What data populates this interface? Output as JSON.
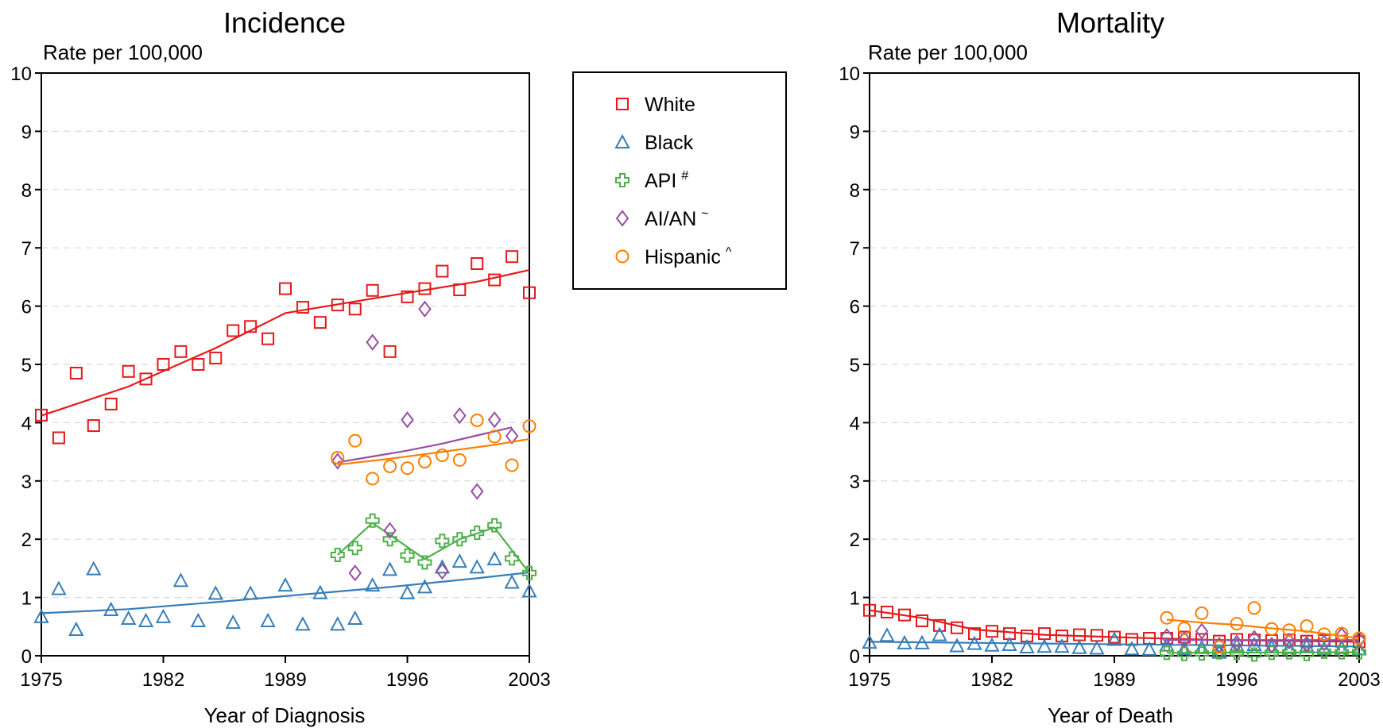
{
  "colors": {
    "White": "#e41a1c",
    "Black": "#377eb8",
    "API": "#4daf4a",
    "AIAN": "#984ea3",
    "Hispanic": "#ff7f00",
    "grid": "#d9d9d9",
    "axis": "#000000"
  },
  "legend": {
    "items": [
      {
        "key": "White",
        "label": "White",
        "sup": "",
        "marker": "square-icon"
      },
      {
        "key": "Black",
        "label": "Black",
        "sup": "",
        "marker": "triangle-icon"
      },
      {
        "key": "API",
        "label": "API",
        "sup": "#",
        "marker": "cross-icon"
      },
      {
        "key": "AIAN",
        "label": "AI/AN",
        "sup": "~",
        "marker": "diamond-icon"
      },
      {
        "key": "Hispanic",
        "label": "Hispanic",
        "sup": "^",
        "marker": "circle-icon"
      }
    ]
  },
  "chart_data": [
    {
      "type": "scatter",
      "title": "Incidence",
      "ylabel": "Rate per 100,000",
      "xlabel": "Year of Diagnosis",
      "xlim": [
        1975,
        2003
      ],
      "ylim": [
        0,
        10
      ],
      "xticks": [
        "1975",
        "1982",
        "1989",
        "1996",
        "2003"
      ],
      "yticks": [
        "0",
        "1",
        "2",
        "3",
        "4",
        "5",
        "6",
        "7",
        "8",
        "9",
        "10"
      ],
      "grid": "horizontal dashed",
      "legend": "right of chart",
      "series": [
        {
          "key": "White",
          "name": "White",
          "x": [
            1975,
            1976,
            1977,
            1978,
            1979,
            1980,
            1981,
            1982,
            1983,
            1984,
            1985,
            1986,
            1987,
            1988,
            1989,
            1990,
            1991,
            1992,
            1993,
            1994,
            1995,
            1996,
            1997,
            1998,
            1999,
            2000,
            2001,
            2002,
            2003
          ],
          "y": [
            4.13,
            3.74,
            4.85,
            3.95,
            4.32,
            4.88,
            4.75,
            5.0,
            5.22,
            5.0,
            5.11,
            5.58,
            5.65,
            5.44,
            6.3,
            5.98,
            5.72,
            6.02,
            5.95,
            6.27,
            5.22,
            6.16,
            6.3,
            6.6,
            6.28,
            6.73,
            6.45,
            6.85,
            6.23
          ],
          "fit_x": [
            1975,
            1980,
            1985,
            1989,
            1990,
            1995,
            2000,
            2003
          ],
          "fit_y": [
            4.12,
            4.62,
            5.28,
            5.88,
            5.93,
            6.18,
            6.42,
            6.62
          ]
        },
        {
          "key": "Black",
          "name": "Black",
          "x": [
            1975,
            1976,
            1977,
            1978,
            1979,
            1980,
            1981,
            1982,
            1983,
            1984,
            1985,
            1986,
            1987,
            1988,
            1989,
            1990,
            1991,
            1992,
            1993,
            1994,
            1995,
            1996,
            1997,
            1998,
            1999,
            2000,
            2001,
            2002,
            2003
          ],
          "y": [
            0.67,
            1.15,
            0.45,
            1.49,
            0.79,
            0.64,
            0.6,
            0.67,
            1.29,
            0.6,
            1.07,
            0.57,
            1.07,
            0.6,
            1.21,
            0.54,
            1.08,
            0.54,
            0.64,
            1.21,
            1.48,
            1.08,
            1.18,
            1.52,
            1.62,
            1.52,
            1.66,
            1.26,
            1.11
          ],
          "fit_x": [
            1975,
            1980,
            1985,
            1990,
            1995,
            2000,
            2003
          ],
          "fit_y": [
            0.73,
            0.8,
            0.92,
            1.05,
            1.18,
            1.33,
            1.43
          ]
        },
        {
          "key": "API",
          "name": "API",
          "x": [
            1992,
            1993,
            1994,
            1995,
            1996,
            1997,
            1998,
            1999,
            2000,
            2001,
            2002,
            2003
          ],
          "y": [
            1.73,
            1.85,
            2.32,
            2.0,
            1.72,
            1.6,
            1.97,
            2.0,
            2.11,
            2.24,
            1.67,
            1.42
          ],
          "fit_x": [
            1992,
            1994,
            1997,
            1999,
            2001,
            2003
          ],
          "fit_y": [
            1.73,
            2.28,
            1.66,
            2.0,
            2.2,
            1.42
          ]
        },
        {
          "key": "AIAN",
          "name": "AI/AN",
          "x": [
            1992,
            1993,
            1994,
            1995,
            1996,
            1997,
            1998,
            1999,
            2000,
            2001,
            2002
          ],
          "y": [
            3.34,
            1.42,
            5.38,
            2.15,
            4.05,
            5.95,
            1.45,
            4.12,
            2.82,
            4.05,
            3.77
          ],
          "fit_x": [
            1992,
            1994,
            1996,
            1998,
            2000,
            2002
          ],
          "fit_y": [
            3.32,
            3.42,
            3.52,
            3.64,
            3.78,
            3.92
          ]
        },
        {
          "key": "Hispanic",
          "name": "Hispanic",
          "x": [
            1992,
            1993,
            1994,
            1995,
            1996,
            1997,
            1998,
            1999,
            2000,
            2001,
            2002,
            2003
          ],
          "y": [
            3.4,
            3.69,
            3.04,
            3.25,
            3.22,
            3.33,
            3.44,
            3.36,
            4.04,
            3.76,
            3.27,
            3.94
          ],
          "fit_x": [
            1992,
            1995,
            1998,
            2001,
            2003
          ],
          "fit_y": [
            3.28,
            3.38,
            3.5,
            3.62,
            3.72
          ]
        }
      ]
    },
    {
      "type": "scatter",
      "title": "Mortality",
      "ylabel": "Rate per 100,000",
      "xlabel": "Year of Death",
      "xlim": [
        1975,
        2003
      ],
      "ylim": [
        0,
        10
      ],
      "xticks": [
        "1975",
        "1982",
        "1989",
        "1996",
        "2003"
      ],
      "yticks": [
        "0",
        "1",
        "2",
        "3",
        "4",
        "5",
        "6",
        "7",
        "8",
        "9",
        "10"
      ],
      "grid": "horizontal dashed",
      "series": [
        {
          "key": "White",
          "name": "White",
          "x": [
            1975,
            1976,
            1977,
            1978,
            1979,
            1980,
            1981,
            1982,
            1983,
            1984,
            1985,
            1986,
            1987,
            1988,
            1989,
            1990,
            1991,
            1992,
            1993,
            1994,
            1995,
            1996,
            1997,
            1998,
            1999,
            2000,
            2001,
            2002,
            2003
          ],
          "y": [
            0.78,
            0.75,
            0.7,
            0.6,
            0.52,
            0.48,
            0.38,
            0.42,
            0.38,
            0.34,
            0.38,
            0.34,
            0.36,
            0.35,
            0.32,
            0.28,
            0.3,
            0.3,
            0.32,
            0.28,
            0.25,
            0.28,
            0.27,
            0.26,
            0.27,
            0.25,
            0.26,
            0.25,
            0.24
          ],
          "fit_x": [
            1975,
            1978,
            1981,
            1985,
            1990,
            1995,
            2000,
            2003
          ],
          "fit_y": [
            0.78,
            0.65,
            0.45,
            0.36,
            0.31,
            0.27,
            0.25,
            0.24
          ]
        },
        {
          "key": "Black",
          "name": "Black",
          "x": [
            1975,
            1976,
            1977,
            1978,
            1979,
            1980,
            1981,
            1982,
            1983,
            1984,
            1985,
            1986,
            1987,
            1988,
            1989,
            1990,
            1991,
            1992,
            1993,
            1994,
            1995,
            1996,
            1997,
            1998,
            1999,
            2000,
            2001,
            2002,
            2003
          ],
          "y": [
            0.23,
            0.35,
            0.22,
            0.22,
            0.36,
            0.17,
            0.21,
            0.18,
            0.19,
            0.15,
            0.16,
            0.16,
            0.14,
            0.13,
            0.28,
            0.12,
            0.11,
            0.18,
            0.12,
            0.14,
            0.06,
            0.18,
            0.19,
            0.15,
            0.14,
            0.17,
            0.12,
            0.14,
            0.12
          ],
          "fit_x": [
            1975,
            1985,
            1995,
            2003
          ],
          "fit_y": [
            0.24,
            0.21,
            0.18,
            0.16
          ]
        },
        {
          "key": "API",
          "name": "API",
          "x": [
            1992,
            1993,
            1994,
            1995,
            1996,
            1997,
            1998,
            1999,
            2000,
            2001,
            2002,
            2003
          ],
          "y": [
            0.05,
            0.03,
            0.04,
            0.06,
            0.05,
            0.02,
            0.05,
            0.06,
            0.03,
            0.07,
            0.06,
            0.06
          ],
          "fit_x": [
            1992,
            2003
          ],
          "fit_y": [
            0.05,
            0.06
          ]
        },
        {
          "key": "AIAN",
          "name": "AI/AN",
          "x": [
            1992,
            1993,
            1994,
            1995,
            1996,
            1997,
            1998,
            1999,
            2000,
            2001,
            2002,
            2003
          ],
          "y": [
            0.33,
            0.28,
            0.42,
            0.18,
            0.22,
            0.3,
            0.18,
            0.25,
            0.2,
            0.22,
            0.35,
            0.28
          ],
          "fit_x": [
            1992,
            2003
          ],
          "fit_y": [
            0.27,
            0.27
          ]
        },
        {
          "key": "Hispanic",
          "name": "Hispanic",
          "x": [
            1992,
            1993,
            1994,
            1995,
            1996,
            1997,
            1998,
            1999,
            2000,
            2001,
            2002,
            2003
          ],
          "y": [
            0.65,
            0.47,
            0.73,
            0.15,
            0.55,
            0.82,
            0.46,
            0.44,
            0.51,
            0.37,
            0.38,
            0.3
          ],
          "fit_x": [
            1992,
            1994,
            1996,
            1998,
            2000,
            2003
          ],
          "fit_y": [
            0.62,
            0.57,
            0.53,
            0.47,
            0.42,
            0.3
          ]
        }
      ]
    }
  ]
}
